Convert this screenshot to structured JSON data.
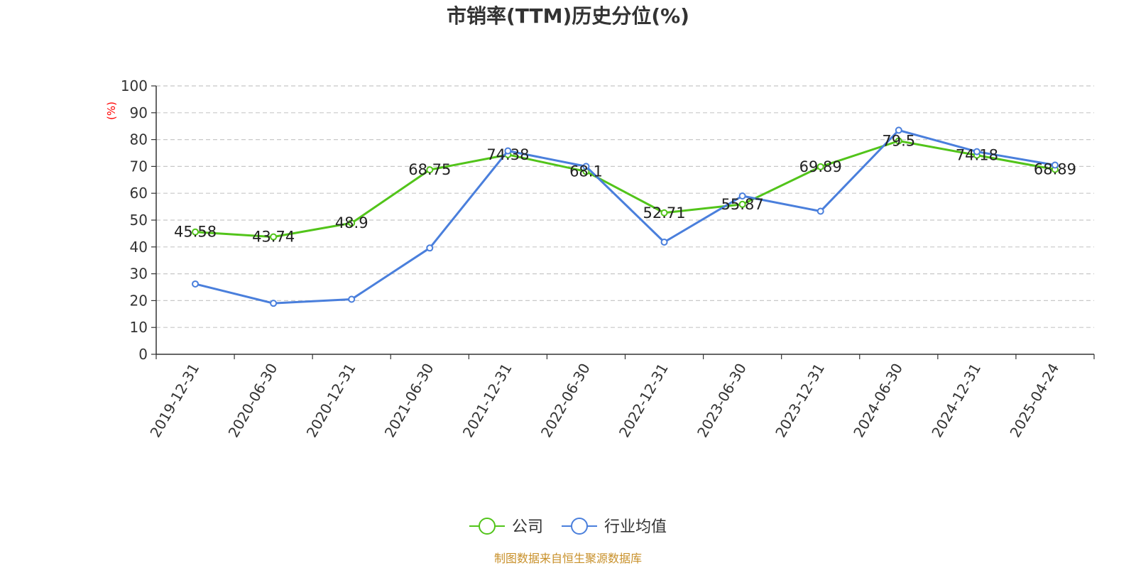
{
  "chart_data": {
    "type": "line",
    "title": "市销率(TTM)历史分位(%)",
    "ylabel": "(%)",
    "xlabel": "",
    "ylim": [
      0,
      100
    ],
    "yticks": [
      0,
      10,
      20,
      30,
      40,
      50,
      60,
      70,
      80,
      90,
      100
    ],
    "grid": true,
    "legend_position": "bottom-center",
    "categories": [
      "2019-12-31",
      "2020-06-30",
      "2020-12-31",
      "2021-06-30",
      "2021-12-31",
      "2022-06-30",
      "2022-12-31",
      "2023-06-30",
      "2023-12-31",
      "2024-06-30",
      "2024-12-31",
      "2025-04-24"
    ],
    "series": [
      {
        "name": "公司",
        "color": "#52c41a",
        "values": [
          45.58,
          43.74,
          48.9,
          68.75,
          74.38,
          68.1,
          52.71,
          55.87,
          69.89,
          79.5,
          74.18,
          68.89
        ],
        "labels": [
          "45.58",
          "43.74",
          "48.9",
          "68.75",
          "74.38",
          "68.1",
          "52.71",
          "55.87",
          "69.89",
          "79.5",
          "74.18",
          "68.89"
        ]
      },
      {
        "name": "行业均值",
        "color": "#4a7fdc",
        "values": [
          26.2,
          19.0,
          20.5,
          39.6,
          75.8,
          70.0,
          41.8,
          59.0,
          53.3,
          83.5,
          75.5,
          70.5
        ]
      }
    ],
    "source": "制图数据来自恒生聚源数据库"
  }
}
